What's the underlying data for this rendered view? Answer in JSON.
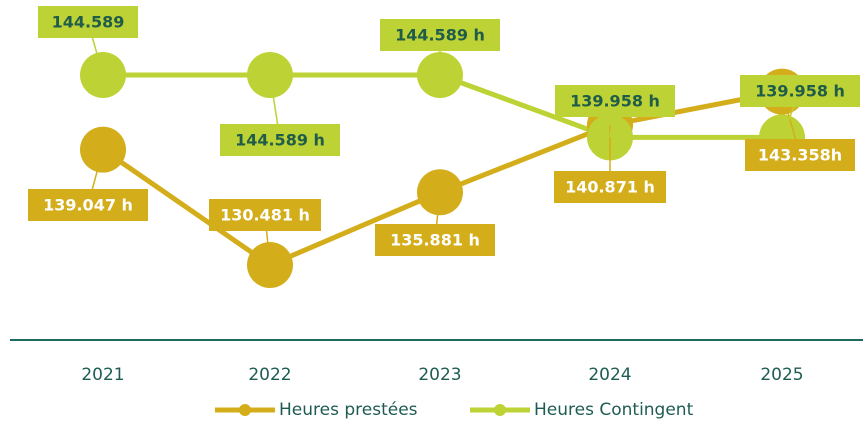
{
  "chart_data": {
    "type": "line",
    "categories": [
      "2021",
      "2022",
      "2023",
      "2024",
      "2025"
    ],
    "series": [
      {
        "name": "Heures prestées",
        "color": "#d4ad1a",
        "label_text_color": "#ffffff",
        "values": [
          139047,
          130481,
          135881,
          140871,
          143358
        ],
        "value_labels": [
          "139.047 h",
          "130.481 h",
          "135.881 h",
          "140.871 h",
          "143.358h"
        ]
      },
      {
        "name": "Heures Contingent",
        "color": "#bdd234",
        "label_text_color": "#1f5c4a",
        "values": [
          144589,
          144589,
          144589,
          139958,
          139958
        ],
        "value_labels": [
          "144.589",
          "144.589 h",
          "144.589 h",
          "139.958 h",
          "139.958 h"
        ]
      }
    ],
    "legend": "bottom"
  }
}
